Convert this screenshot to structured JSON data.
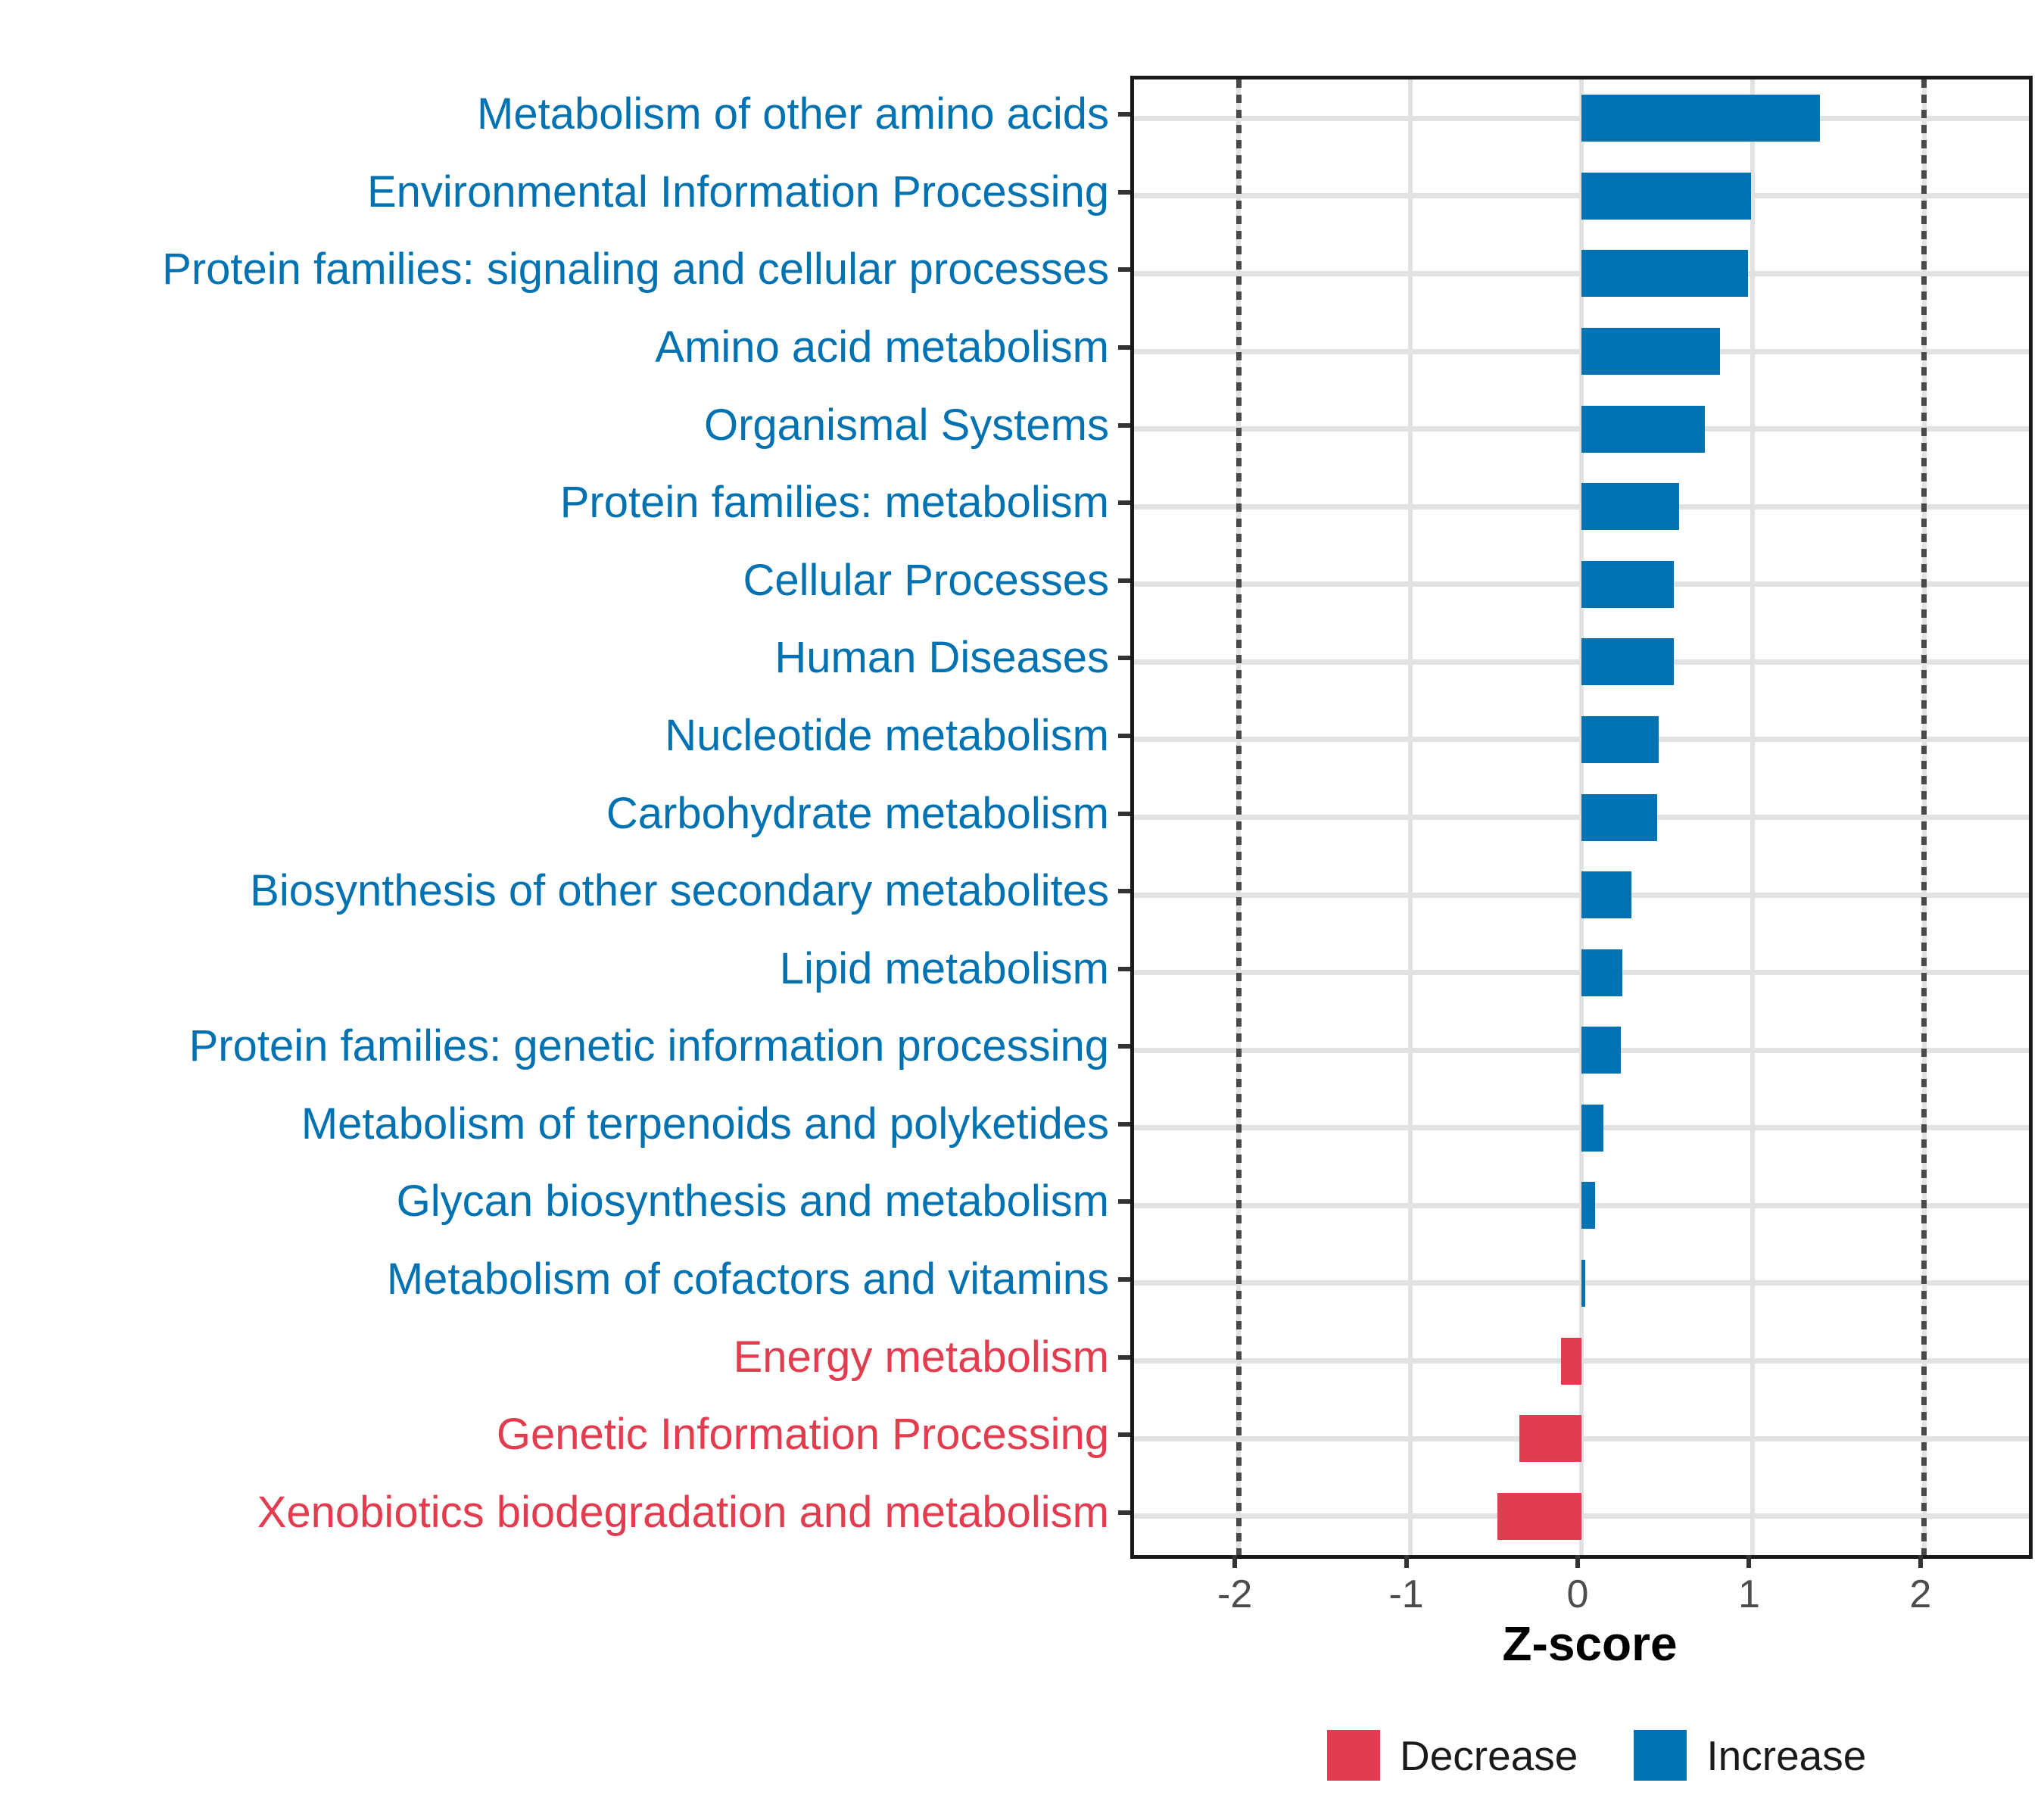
{
  "chart_data": {
    "type": "bar",
    "orientation": "horizontal",
    "title": "",
    "xlabel": "Z-score",
    "xlim": [
      -2.61,
      2.61
    ],
    "x_ticks": [
      -2,
      -1,
      0,
      1,
      2
    ],
    "x_tick_labels": [
      "-2",
      "-1",
      "0",
      "1",
      "2"
    ],
    "reference_lines_dashed": [
      -2,
      2
    ],
    "grid": true,
    "legend_position": "bottom",
    "categories": [
      "Metabolism of other amino acids",
      "Environmental Information Processing",
      "Protein families: signaling and cellular processes",
      "Amino acid metabolism",
      "Organismal Systems",
      "Protein families: metabolism",
      "Cellular Processes",
      "Human Diseases",
      "Nucleotide metabolism",
      "Carbohydrate metabolism",
      "Biosynthesis of other secondary metabolites",
      "Lipid metabolism",
      "Protein families: genetic information processing",
      "Metabolism of terpenoids and polyketides",
      "Glycan biosynthesis and metabolism",
      "Metabolism of cofactors and vitamins",
      "Energy metabolism",
      "Genetic Information Processing",
      "Xenobiotics biodegradation and metabolism"
    ],
    "values": [
      1.39,
      0.99,
      0.97,
      0.81,
      0.72,
      0.57,
      0.54,
      0.54,
      0.45,
      0.44,
      0.29,
      0.24,
      0.23,
      0.13,
      0.08,
      0.02,
      -0.12,
      -0.36,
      -0.49
    ],
    "groups": [
      "increase",
      "increase",
      "increase",
      "increase",
      "increase",
      "increase",
      "increase",
      "increase",
      "increase",
      "increase",
      "increase",
      "increase",
      "increase",
      "increase",
      "increase",
      "increase",
      "decrease",
      "decrease",
      "decrease"
    ],
    "colors": {
      "increase": "#0072B2",
      "decrease": "#E23C4F"
    },
    "legend": [
      {
        "label": "Decrease",
        "group": "decrease"
      },
      {
        "label": "Increase",
        "group": "increase"
      }
    ]
  }
}
